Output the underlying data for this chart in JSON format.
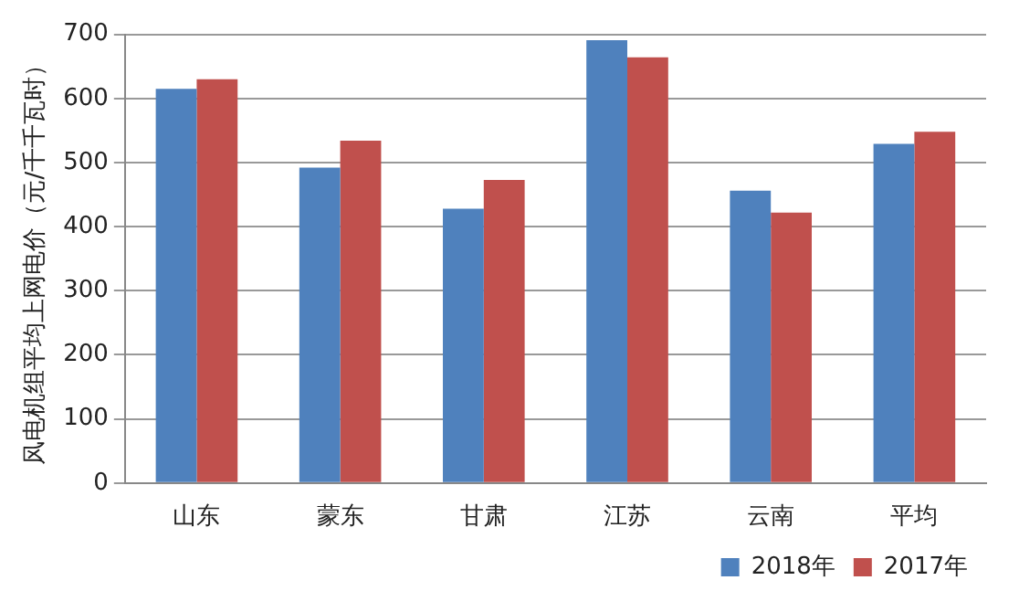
{
  "chart_data": {
    "type": "bar",
    "ylabel": "风电机组平均上网电价（元/千千瓦时）",
    "categories": [
      "山东",
      "蒙东",
      "甘肃",
      "江苏",
      "云南",
      "平均"
    ],
    "series": [
      {
        "name": "2018年",
        "color": "#4f81bd",
        "values": [
          615,
          492,
          428,
          691,
          456,
          529
        ]
      },
      {
        "name": "2017年",
        "color": "#c0504d",
        "values": [
          630,
          534,
          473,
          664,
          422,
          548
        ]
      }
    ],
    "ylim": [
      0,
      700
    ],
    "yticks": [
      0,
      100,
      200,
      300,
      400,
      500,
      600,
      700
    ],
    "grid": "y",
    "legend": "bottom"
  }
}
